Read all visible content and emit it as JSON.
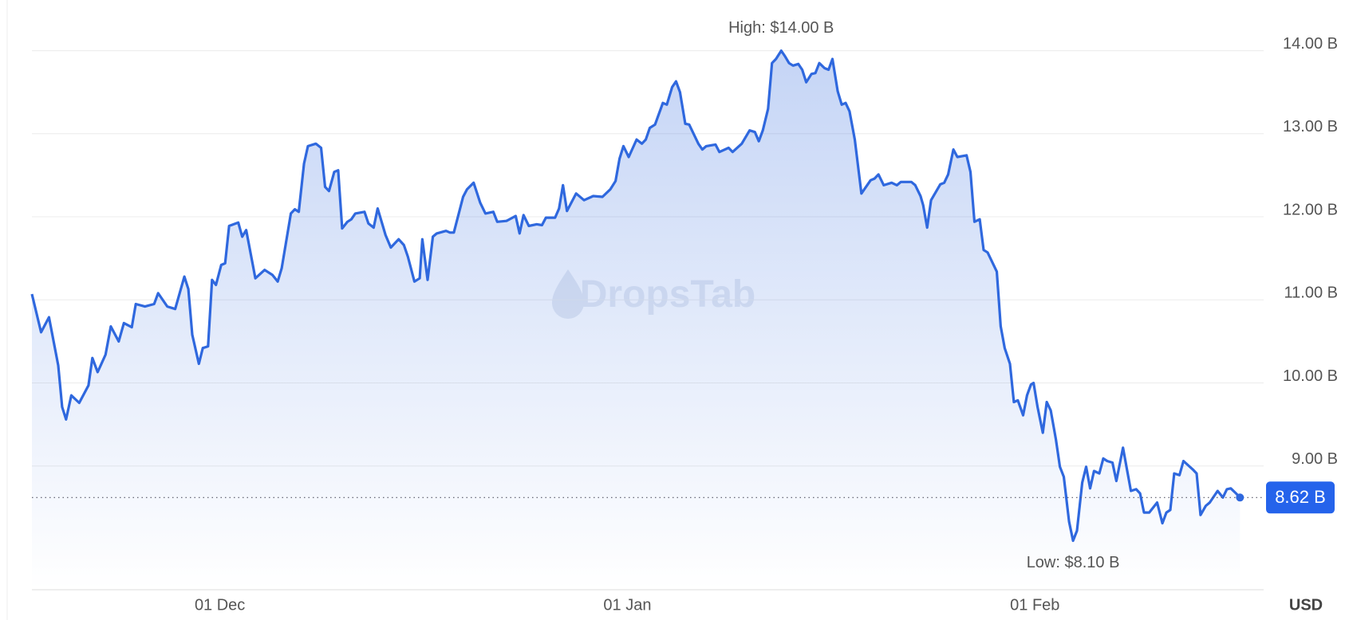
{
  "chart_data": {
    "type": "line",
    "watermark": "DropsTab",
    "axis_label": "USD",
    "annotations": {
      "high": "High: $14.00 B",
      "low": "Low: $8.10 B"
    },
    "current": {
      "value": 8.62,
      "label": "8.62 B"
    },
    "color": "#2f68de",
    "grid": true,
    "xlim": [
      -14.3,
      79.4
    ],
    "xticks": [
      {
        "value": 0,
        "label": "01 Dec"
      },
      {
        "value": 31,
        "label": "01 Jan"
      },
      {
        "value": 62,
        "label": "01 Feb"
      }
    ],
    "ylim": [
      7.51,
      14.61
    ],
    "yticks": [
      {
        "value": 9,
        "label": "9.00 B"
      },
      {
        "value": 10,
        "label": "10.00 B"
      },
      {
        "value": 11,
        "label": "11.00 B"
      },
      {
        "value": 12,
        "label": "12.00 B"
      },
      {
        "value": 13,
        "label": "13.00 B"
      },
      {
        "value": 14,
        "label": "14.00 B"
      }
    ],
    "x": [
      -14.3,
      -13.6,
      -13.0,
      -12.3,
      -12.0,
      -11.7,
      -11.3,
      -10.7,
      -10.0,
      -9.7,
      -9.3,
      -8.7,
      -8.3,
      -7.7,
      -7.3,
      -6.7,
      -6.4,
      -5.7,
      -5.0,
      -4.7,
      -4.0,
      -3.4,
      -2.7,
      -2.4,
      -2.1,
      -1.6,
      -1.3,
      -0.9,
      -0.6,
      -0.3,
      0.1,
      0.4,
      0.7,
      1.4,
      1.7,
      2.0,
      2.7,
      3.4,
      4.0,
      4.4,
      4.7,
      5.4,
      5.7,
      6.0,
      6.4,
      6.7,
      7.3,
      7.7,
      8.0,
      8.3,
      8.7,
      9.0,
      9.3,
      9.7,
      10.0,
      10.3,
      11.0,
      11.3,
      11.7,
      12.0,
      12.6,
      13.0,
      13.6,
      14.0,
      14.3,
      14.8,
      15.2,
      15.4,
      15.8,
      16.2,
      16.5,
      17.2,
      17.5,
      17.8,
      18.5,
      18.8,
      19.3,
      19.8,
      20.2,
      20.8,
      21.1,
      21.8,
      22.5,
      22.8,
      23.1,
      23.5,
      24.1,
      24.5,
      24.8,
      25.5,
      25.8,
      26.1,
      26.4,
      27.1,
      27.7,
      28.4,
      29.1,
      29.7,
      30.1,
      30.4,
      30.7,
      31.1,
      31.7,
      32.1,
      32.4,
      32.7,
      33.1,
      33.7,
      34.0,
      34.4,
      34.7,
      35.0,
      35.4,
      35.7,
      36.4,
      36.7,
      37.0,
      37.7,
      38.0,
      38.7,
      39.0,
      39.7,
      40.3,
      40.7,
      41.0,
      41.3,
      41.7,
      42.0,
      42.3,
      42.7,
      43.0,
      43.3,
      43.6,
      44.0,
      44.3,
      44.6,
      45.0,
      45.3,
      45.6,
      46.0,
      46.3,
      46.6,
      47.0,
      47.3,
      47.6,
      47.9,
      48.3,
      48.8,
      49.5,
      49.8,
      50.1,
      50.5,
      51.1,
      51.5,
      51.8,
      52.6,
      52.9,
      53.3,
      53.5,
      53.8,
      54.1,
      54.8,
      55.1,
      55.4,
      55.8,
      56.1,
      56.8,
      57.1,
      57.4,
      57.8,
      58.1,
      58.4,
      59.1,
      59.4,
      59.7,
      60.1,
      60.4,
      60.7,
      61.1,
      61.4,
      61.7,
      61.9,
      62.2,
      62.6,
      62.9,
      63.2,
      63.6,
      63.9,
      64.2,
      64.6,
      64.9,
      65.2,
      65.6,
      65.9,
      66.2,
      66.5,
      66.9,
      67.2,
      67.5,
      67.9,
      68.2,
      68.7,
      69.3,
      69.7,
      70.0,
      70.3,
      70.7,
      71.3,
      71.7,
      72.0,
      72.3,
      72.6,
      73.0,
      73.3,
      74.0,
      74.3,
      74.6,
      75.0,
      75.3,
      75.9,
      76.3,
      76.6,
      76.9,
      77.3,
      77.6
    ],
    "values": [
      11.07,
      10.61,
      10.79,
      10.21,
      9.71,
      9.56,
      9.85,
      9.76,
      9.97,
      10.3,
      10.13,
      10.34,
      10.68,
      10.5,
      10.72,
      10.67,
      10.95,
      10.92,
      10.95,
      11.08,
      10.92,
      10.89,
      11.28,
      11.13,
      10.58,
      10.23,
      10.42,
      10.44,
      11.24,
      11.18,
      11.42,
      11.44,
      11.89,
      11.93,
      11.76,
      11.84,
      11.26,
      11.36,
      11.3,
      11.22,
      11.38,
      12.04,
      12.09,
      12.06,
      12.64,
      12.85,
      12.88,
      12.83,
      12.36,
      12.31,
      12.54,
      12.56,
      11.86,
      11.94,
      11.97,
      12.04,
      12.06,
      11.92,
      11.87,
      12.1,
      11.78,
      11.63,
      11.73,
      11.66,
      11.52,
      11.22,
      11.26,
      11.73,
      11.24,
      11.76,
      11.8,
      11.83,
      11.81,
      11.81,
      12.24,
      12.33,
      12.41,
      12.17,
      12.04,
      12.06,
      11.94,
      11.95,
      12.01,
      11.8,
      12.02,
      11.89,
      11.91,
      11.9,
      11.99,
      11.99,
      12.1,
      12.38,
      12.07,
      12.28,
      12.2,
      12.25,
      12.24,
      12.33,
      12.43,
      12.7,
      12.85,
      12.72,
      12.93,
      12.88,
      12.93,
      13.07,
      13.11,
      13.37,
      13.35,
      13.56,
      13.63,
      13.5,
      13.12,
      13.11,
      12.88,
      12.81,
      12.85,
      12.87,
      12.78,
      12.83,
      12.78,
      12.88,
      13.04,
      13.02,
      12.91,
      13.04,
      13.3,
      13.85,
      13.9,
      14.0,
      13.93,
      13.85,
      13.82,
      13.84,
      13.77,
      13.62,
      13.72,
      13.73,
      13.85,
      13.79,
      13.77,
      13.9,
      13.51,
      13.35,
      13.37,
      13.27,
      12.93,
      12.28,
      12.44,
      12.46,
      12.51,
      12.38,
      12.41,
      12.38,
      12.42,
      12.42,
      12.38,
      12.25,
      12.14,
      11.87,
      12.2,
      12.39,
      12.41,
      12.51,
      12.81,
      12.72,
      12.74,
      12.54,
      11.94,
      11.97,
      11.6,
      11.57,
      11.34,
      10.68,
      10.42,
      10.23,
      9.77,
      9.79,
      9.61,
      9.85,
      9.98,
      10.0,
      9.71,
      9.4,
      9.77,
      9.67,
      9.32,
      8.99,
      8.87,
      8.33,
      8.1,
      8.22,
      8.8,
      8.99,
      8.73,
      8.94,
      8.91,
      9.09,
      9.06,
      9.04,
      8.82,
      9.22,
      8.7,
      8.72,
      8.67,
      8.44,
      8.44,
      8.56,
      8.31,
      8.44,
      8.47,
      8.91,
      8.89,
      9.06,
      8.96,
      8.91,
      8.41,
      8.52,
      8.56,
      8.7,
      8.62,
      8.72,
      8.73,
      8.67,
      8.62
    ]
  }
}
